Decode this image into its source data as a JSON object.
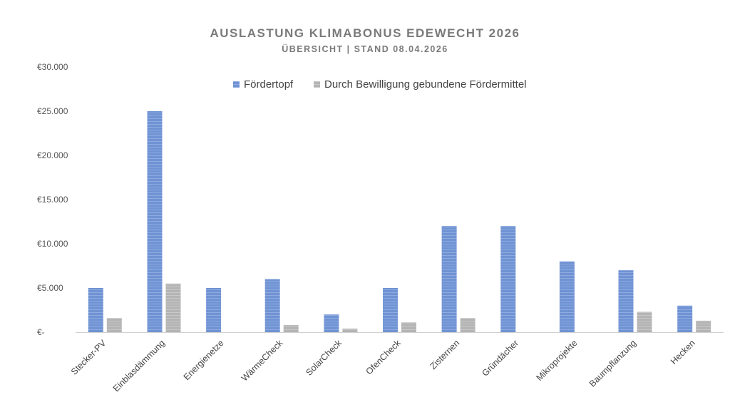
{
  "chart_data": {
    "type": "bar",
    "title": "AUSLASTUNG KLIMABONUS EDEWECHT 2026",
    "subtitle": "ÜBERSICHT | STAND 08.04.2026",
    "categories": [
      "Stecker-PV",
      "Einblasdämmung",
      "Energienetze",
      "WärmeCheck",
      "SolarCheck",
      "OfenCheck",
      "Zisternen",
      "Gründächer",
      "Mikroprojekte",
      "Baumpflanzung",
      "Hecken"
    ],
    "series": [
      {
        "name": "Fördertopf",
        "color": "#6f93d3",
        "values": [
          5000,
          25000,
          5000,
          6000,
          2000,
          5000,
          12000,
          12000,
          8000,
          7000,
          3000
        ]
      },
      {
        "name": "Durch Bewilligung gebundene Fördermittel",
        "color": "#b4b4b4",
        "values": [
          1600,
          5500,
          0,
          800,
          400,
          1100,
          1600,
          0,
          0,
          2300,
          1300
        ]
      }
    ],
    "y_ticks": [
      "€-",
      "€5.000",
      "€10.000",
      "€15.000",
      "€20.000",
      "€25.000",
      "€30.000"
    ],
    "ylim": [
      0,
      30000
    ],
    "legend_position": "top",
    "grid": false
  }
}
